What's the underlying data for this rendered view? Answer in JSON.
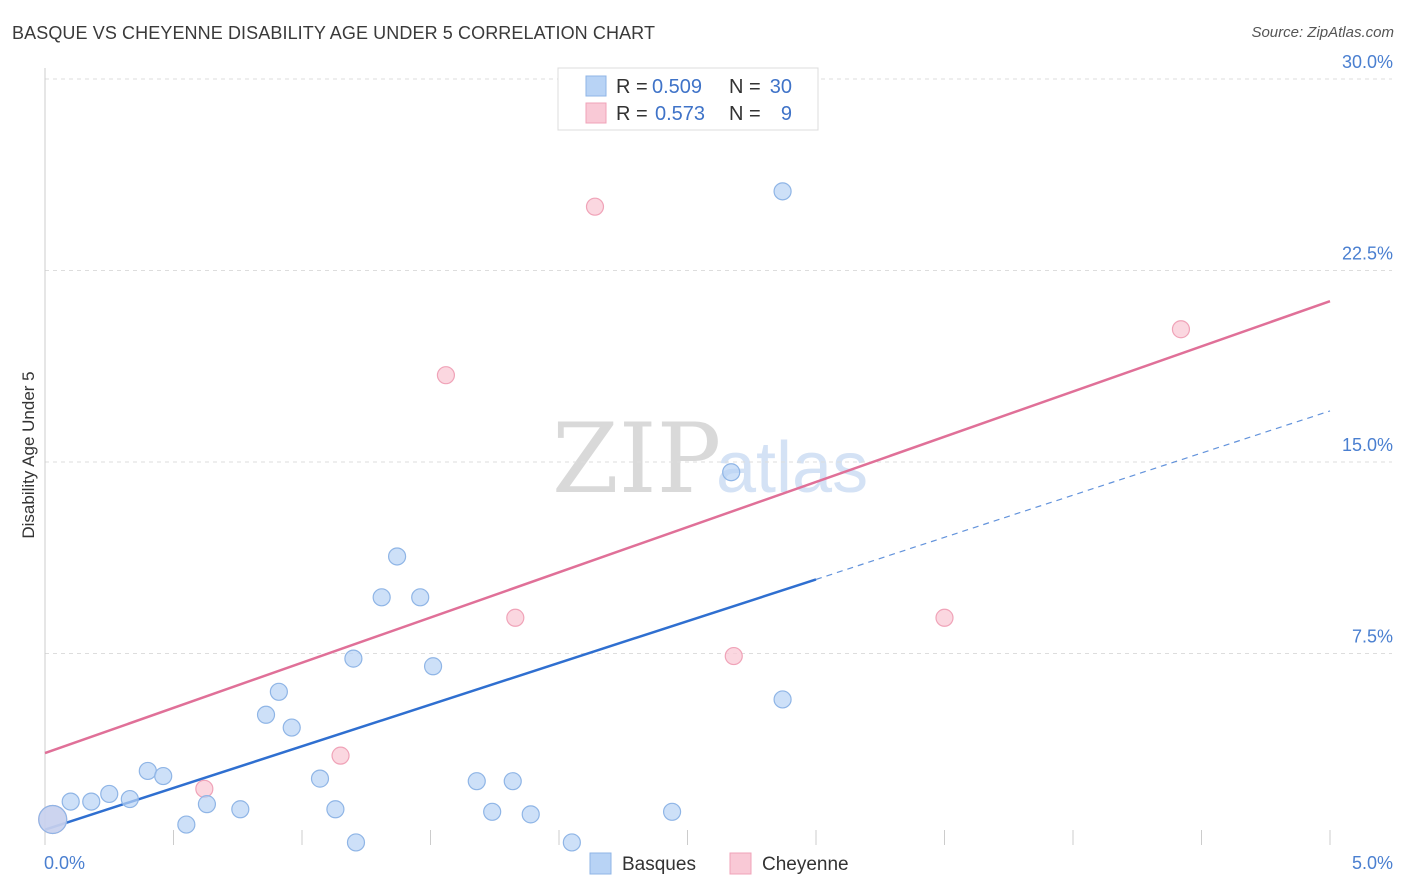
{
  "header": {
    "title": "BASQUE VS CHEYENNE DISABILITY AGE UNDER 5 CORRELATION CHART",
    "source": "Source: ZipAtlas.com"
  },
  "watermark": {
    "zip": "ZIP",
    "atlas": "atlas"
  },
  "colors": {
    "basques_fill": "#b8d3f5",
    "basques_stroke": "#8fb5e6",
    "basques_line": "#2f6fd0",
    "cheyenne_fill": "#f9c9d6",
    "cheyenne_stroke": "#f0a3b8",
    "cheyenne_line": "#e07098",
    "axis_label": "#4a7fd0",
    "grid": "#dddddd"
  },
  "legend": {
    "rows": [
      {
        "r_label": "R =",
        "r_value": "0.509",
        "n_label": "N =",
        "n_value": "30"
      },
      {
        "r_label": "R =",
        "r_value": "0.573",
        "n_label": "N =",
        "n_value": "9"
      }
    ]
  },
  "chart_data": {
    "type": "scatter",
    "title": "BASQUE VS CHEYENNE DISABILITY AGE UNDER 5 CORRELATION CHART",
    "xlabel": "",
    "ylabel": "Disability Age Under 5",
    "xlim": [
      0,
      5.0
    ],
    "ylim": [
      0,
      30.0
    ],
    "x_tick_labels": [
      "0.0%",
      "5.0%"
    ],
    "y_ticks": [
      7.5,
      15.0,
      22.5,
      30.0
    ],
    "y_tick_labels": [
      "7.5%",
      "15.0%",
      "22.5%",
      "30.0%"
    ],
    "grid": true,
    "legend_position": "top-center",
    "series": [
      {
        "name": "Basques",
        "points": [
          [
            0.03,
            1.0
          ],
          [
            0.1,
            1.7
          ],
          [
            0.18,
            1.7
          ],
          [
            0.25,
            2.0
          ],
          [
            0.33,
            1.8
          ],
          [
            0.4,
            2.9
          ],
          [
            0.46,
            2.7
          ],
          [
            0.55,
            0.8
          ],
          [
            0.63,
            1.6
          ],
          [
            0.76,
            1.4
          ],
          [
            0.86,
            5.1
          ],
          [
            0.91,
            6.0
          ],
          [
            0.96,
            4.6
          ],
          [
            1.07,
            2.6
          ],
          [
            1.13,
            1.4
          ],
          [
            1.2,
            7.3
          ],
          [
            1.21,
            0.1
          ],
          [
            1.31,
            9.7
          ],
          [
            1.37,
            11.3
          ],
          [
            1.46,
            9.7
          ],
          [
            1.51,
            7.0
          ],
          [
            1.68,
            2.5
          ],
          [
            1.74,
            1.3
          ],
          [
            1.82,
            2.5
          ],
          [
            1.89,
            1.2
          ],
          [
            2.05,
            0.1
          ],
          [
            2.44,
            1.3
          ],
          [
            2.67,
            14.6
          ],
          [
            2.87,
            5.7
          ],
          [
            2.87,
            25.6
          ]
        ],
        "trend": {
          "x0": 0.0,
          "y0": 0.6,
          "x1": 3.0,
          "y1": 10.4,
          "dash_to_x": 5.0,
          "dash_to_y": 17.0
        }
      },
      {
        "name": "Cheyenne",
        "points": [
          [
            0.03,
            1.0
          ],
          [
            0.62,
            2.2
          ],
          [
            1.15,
            3.5
          ],
          [
            1.56,
            18.4
          ],
          [
            1.83,
            8.9
          ],
          [
            2.14,
            25.0
          ],
          [
            2.68,
            7.4
          ],
          [
            3.5,
            8.9
          ],
          [
            4.42,
            20.2
          ]
        ],
        "trend": {
          "x0": 0.0,
          "y0": 3.6,
          "x1": 5.0,
          "y1": 21.3
        }
      }
    ]
  },
  "bottom_legend": {
    "items": [
      {
        "label": "Basques"
      },
      {
        "label": "Cheyenne"
      }
    ]
  }
}
